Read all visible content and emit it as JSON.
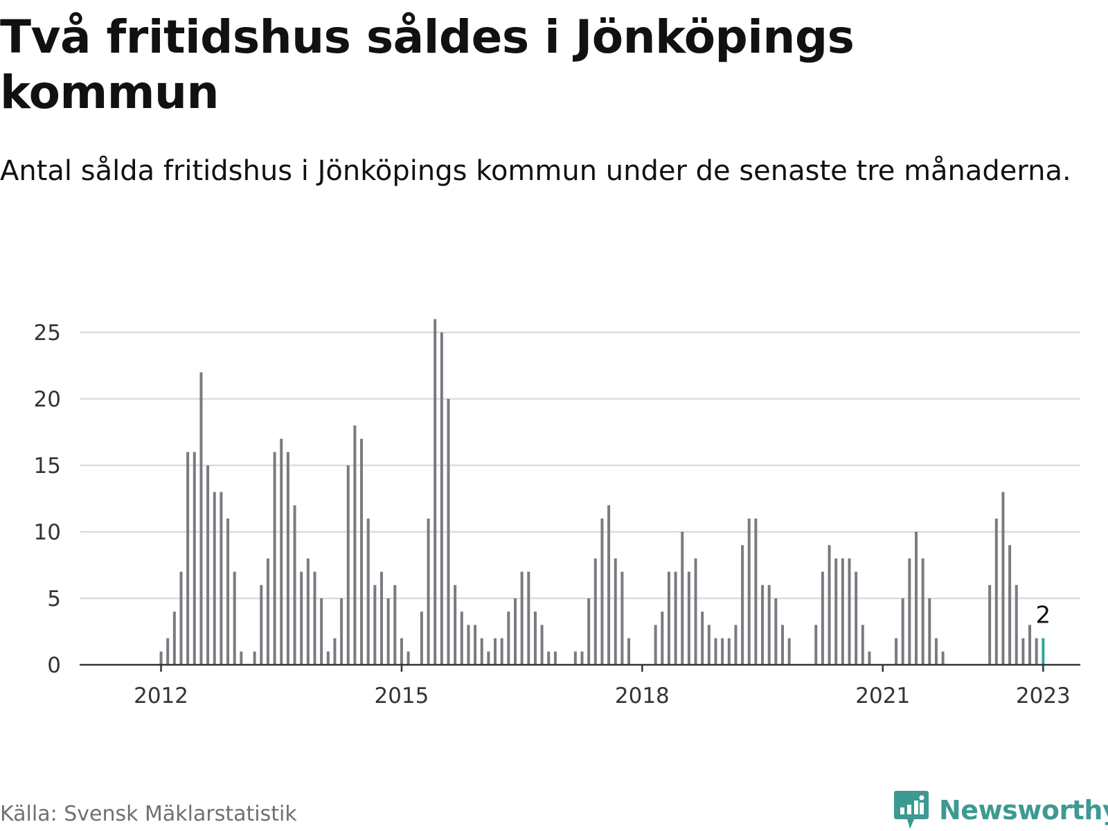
{
  "title": "Två fritidshus såldes i Jönköpings kommun",
  "subtitle": "Antal sålda fritidshus i Jönköpings kommun under de senaste tre månaderna.",
  "source": "Källa: Svensk Mäklarstatistik",
  "brand": "Newsworthy",
  "colors": {
    "bar": "#7a7a80",
    "highlight": "#2fa79a",
    "grid": "#dcdcdc",
    "axis": "#333333",
    "brand": "#3d9a92"
  },
  "chart_data": {
    "type": "bar",
    "x_start": "2011-06",
    "ylim": [
      0,
      25
    ],
    "yticks": [
      0,
      5,
      10,
      15,
      20,
      25
    ],
    "xticks": [
      {
        "date": "2012-01",
        "label": "2012"
      },
      {
        "date": "2015-01",
        "label": "2015"
      },
      {
        "date": "2018-01",
        "label": "2018"
      },
      {
        "date": "2021-01",
        "label": "2021"
      },
      {
        "date": "2023-01",
        "label": "2023"
      }
    ],
    "values": [
      0,
      0,
      0,
      0,
      0,
      0,
      0,
      1,
      2,
      4,
      7,
      16,
      16,
      22,
      15,
      13,
      13,
      11,
      7,
      1,
      0,
      1,
      6,
      8,
      16,
      17,
      16,
      12,
      7,
      8,
      7,
      5,
      1,
      2,
      5,
      15,
      18,
      17,
      11,
      6,
      7,
      5,
      6,
      2,
      1,
      0,
      4,
      11,
      26,
      25,
      20,
      6,
      4,
      3,
      3,
      2,
      1,
      2,
      2,
      4,
      5,
      7,
      7,
      4,
      3,
      1,
      1,
      0,
      0,
      1,
      1,
      5,
      8,
      11,
      12,
      8,
      7,
      2,
      0,
      0,
      0,
      3,
      4,
      7,
      7,
      10,
      7,
      8,
      4,
      3,
      2,
      2,
      2,
      3,
      9,
      11,
      11,
      6,
      6,
      5,
      3,
      2,
      0,
      0,
      0,
      3,
      7,
      9,
      8,
      8,
      8,
      7,
      3,
      1,
      0,
      0,
      0,
      2,
      5,
      8,
      10,
      8,
      5,
      2,
      1,
      0,
      0,
      0,
      0,
      0,
      0,
      6,
      11,
      13,
      9,
      6,
      2,
      3,
      2,
      2
    ],
    "grid": true,
    "annotation": {
      "label": "2"
    }
  }
}
